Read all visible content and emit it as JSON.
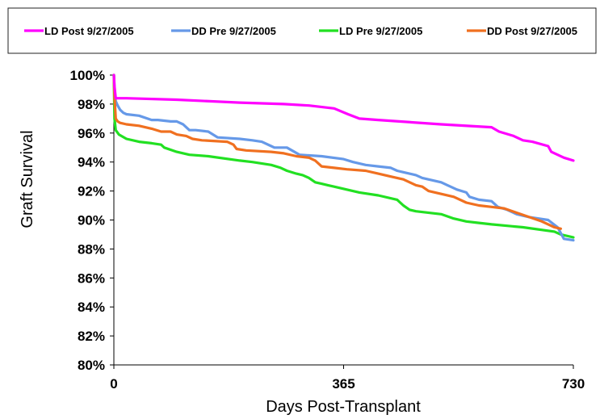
{
  "chart_data": {
    "type": "line",
    "title": "",
    "xlabel": "Days Post-Transplant",
    "ylabel": "Graft Survival",
    "xlim": [
      0,
      730
    ],
    "ylim": [
      80,
      100
    ],
    "x_ticks": [
      0,
      365,
      730
    ],
    "x_tick_labels": [
      "0",
      "365",
      "730"
    ],
    "y_ticks": [
      80,
      82,
      84,
      86,
      88,
      90,
      92,
      94,
      96,
      98,
      100
    ],
    "y_tick_labels": [
      "80%",
      "82%",
      "84%",
      "86%",
      "88%",
      "90%",
      "92%",
      "94%",
      "96%",
      "98%",
      "100%"
    ],
    "grid": false,
    "legend_position": "top",
    "series": [
      {
        "name": "LD Post 9/27/2005",
        "color": "#ff00ff",
        "x": [
          0,
          1,
          3,
          5,
          20,
          100,
          200,
          270,
          310,
          350,
          372,
          390,
          420,
          520,
          600,
          612,
          635,
          650,
          665,
          690,
          695,
          705,
          715,
          730
        ],
        "y": [
          100,
          99.2,
          98.4,
          98.4,
          98.4,
          98.3,
          98.1,
          98.0,
          97.9,
          97.7,
          97.3,
          97.0,
          96.9,
          96.6,
          96.4,
          96.1,
          95.8,
          95.5,
          95.4,
          95.1,
          94.7,
          94.5,
          94.3,
          94.1
        ]
      },
      {
        "name": "DD Pre 9/27/2005",
        "color": "#6699e8",
        "x": [
          0,
          1,
          3,
          6,
          10,
          15,
          20,
          40,
          60,
          70,
          90,
          100,
          110,
          120,
          130,
          150,
          165,
          200,
          220,
          235,
          250,
          255,
          275,
          295,
          330,
          365,
          380,
          400,
          420,
          440,
          450,
          460,
          480,
          490,
          520,
          530,
          545,
          560,
          565,
          580,
          600,
          610,
          625,
          640,
          660,
          690,
          705,
          715,
          730
        ],
        "y": [
          100,
          99.0,
          98.2,
          97.9,
          97.6,
          97.4,
          97.3,
          97.2,
          96.9,
          96.9,
          96.8,
          96.8,
          96.6,
          96.2,
          96.2,
          96.1,
          95.7,
          95.6,
          95.5,
          95.4,
          95.1,
          95.0,
          95.0,
          94.5,
          94.4,
          94.2,
          94.0,
          93.8,
          93.7,
          93.6,
          93.4,
          93.3,
          93.1,
          92.9,
          92.6,
          92.4,
          92.1,
          91.9,
          91.6,
          91.4,
          91.3,
          90.9,
          90.7,
          90.4,
          90.2,
          90.0,
          89.5,
          88.7,
          88.6
        ]
      },
      {
        "name": "LD Pre 9/27/2005",
        "color": "#22e022",
        "x": [
          0,
          1,
          3,
          8,
          20,
          40,
          60,
          75,
          80,
          100,
          120,
          150,
          200,
          220,
          250,
          265,
          275,
          290,
          300,
          310,
          320,
          330,
          340,
          350,
          370,
          390,
          420,
          450,
          460,
          470,
          480,
          520,
          540,
          560,
          580,
          600,
          650,
          700,
          710,
          730
        ],
        "y": [
          100,
          97.0,
          96.2,
          95.9,
          95.6,
          95.4,
          95.3,
          95.2,
          95.0,
          94.7,
          94.5,
          94.4,
          94.1,
          94.0,
          93.8,
          93.6,
          93.4,
          93.2,
          93.1,
          92.9,
          92.6,
          92.5,
          92.4,
          92.3,
          92.1,
          91.9,
          91.7,
          91.4,
          91.0,
          90.7,
          90.6,
          90.4,
          90.1,
          89.9,
          89.8,
          89.7,
          89.5,
          89.2,
          89.0,
          88.8
        ]
      },
      {
        "name": "DD Post 9/27/2005",
        "color": "#f07020",
        "x": [
          0,
          1,
          3,
          6,
          10,
          20,
          40,
          60,
          75,
          90,
          100,
          115,
          125,
          140,
          180,
          190,
          195,
          210,
          250,
          270,
          290,
          310,
          320,
          330,
          350,
          370,
          400,
          420,
          440,
          460,
          470,
          480,
          490,
          500,
          520,
          540,
          560,
          580,
          600,
          620,
          640,
          660,
          680,
          700,
          710
        ],
        "y": [
          100,
          98.5,
          97.0,
          96.8,
          96.7,
          96.6,
          96.5,
          96.3,
          96.1,
          96.1,
          95.9,
          95.8,
          95.6,
          95.5,
          95.4,
          95.2,
          94.9,
          94.8,
          94.7,
          94.6,
          94.4,
          94.3,
          94.1,
          93.7,
          93.6,
          93.5,
          93.4,
          93.2,
          93.0,
          92.8,
          92.6,
          92.4,
          92.3,
          92.0,
          91.8,
          91.6,
          91.2,
          91.0,
          90.9,
          90.8,
          90.5,
          90.2,
          89.9,
          89.5,
          89.4
        ]
      }
    ]
  }
}
